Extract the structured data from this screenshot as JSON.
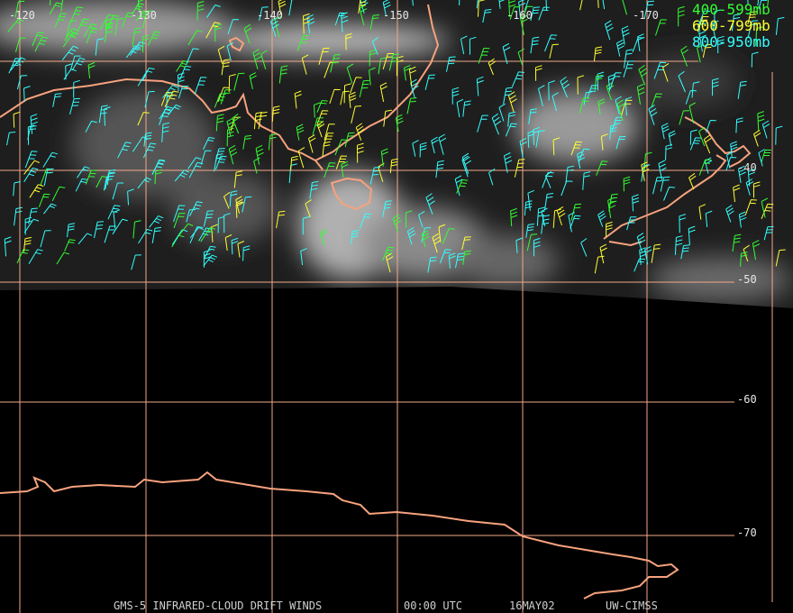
{
  "map": {
    "lon_labels": [
      "-120",
      "-130",
      "-140",
      "-150",
      "-160",
      "-170"
    ],
    "lat_labels": [
      "-40",
      "-50",
      "-60",
      "-70"
    ],
    "legend": [
      {
        "label": "400-599mb",
        "color": "#33ff33"
      },
      {
        "label": "600-799mb",
        "color": "#ffff33"
      },
      {
        "label": "800-950mb",
        "color": "#33ffff"
      }
    ],
    "footer": [
      "GMS-5 INFRARED-CLOUD DRIFT WINDS",
      "00:00 UTC",
      "16MAY02",
      "UW-CIMSS"
    ]
  }
}
